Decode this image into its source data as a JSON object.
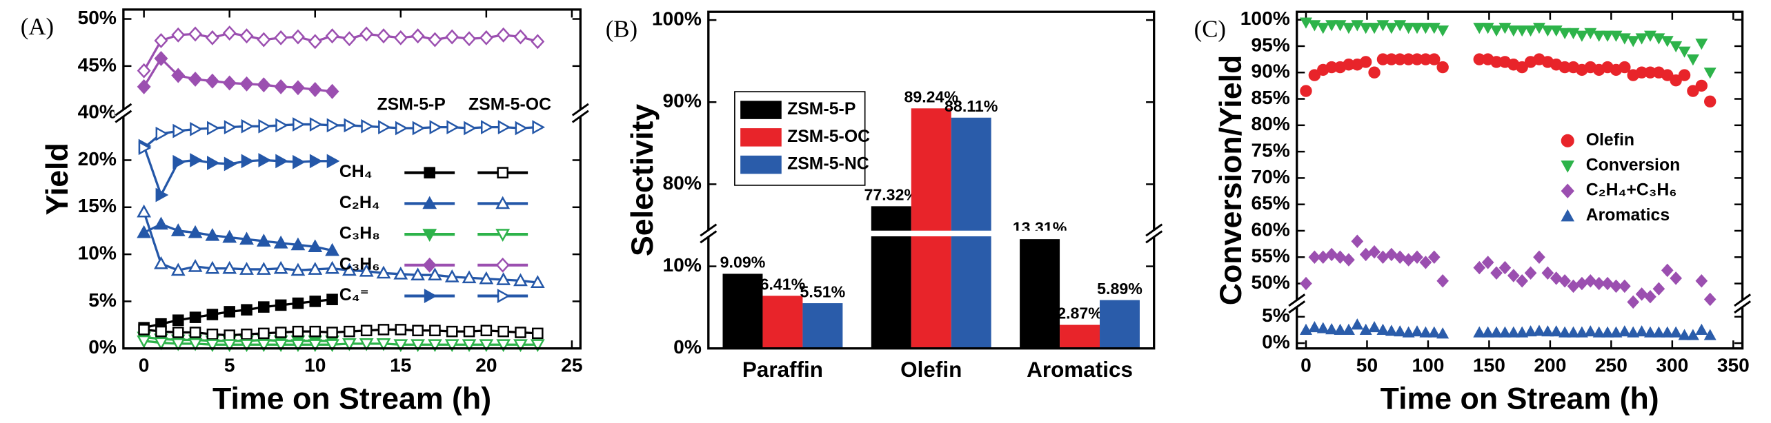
{
  "chart_data": [
    {
      "type": "line",
      "label": "(A)",
      "ylabel": "Yield",
      "xlabel": "Time on Stream (h)",
      "xlim": [
        -1.2,
        25.5
      ],
      "ylim": [
        0,
        51
      ],
      "ybreak": [
        25,
        40
      ],
      "xticks": [
        0,
        5,
        10,
        15,
        20,
        25
      ],
      "yticks": [
        {
          "value": 0,
          "label": "0%"
        },
        {
          "value": 5,
          "label": "5%"
        },
        {
          "value": 10,
          "label": "10%"
        },
        {
          "value": 15,
          "label": "15%"
        },
        {
          "value": 20,
          "label": "20%"
        },
        {
          "value": 40,
          "label": "40%"
        },
        {
          "value": 45,
          "label": "45%"
        },
        {
          "value": 50,
          "label": "50%"
        }
      ],
      "species": [
        {
          "name": "CH₄",
          "color": "#000000",
          "marker": "square"
        },
        {
          "name": "C₂H₄",
          "color": "#2457a8",
          "marker": "tri-up"
        },
        {
          "name": "C₃H₈",
          "color": "#2db34a",
          "marker": "tri-down"
        },
        {
          "name": "C₃H₆",
          "color": "#9b4fb0",
          "marker": "diamond"
        },
        {
          "name": "C₄⁼",
          "color": "#2457a8",
          "marker": "tri-right"
        }
      ],
      "groups": [
        {
          "name": "ZSM-5-P",
          "filled": true,
          "x": [
            0,
            1,
            2,
            3,
            4,
            5,
            6,
            7,
            8,
            9,
            10,
            11
          ],
          "values": [
            [
              2.2,
              2.6,
              3.0,
              3.3,
              3.6,
              3.9,
              4.1,
              4.4,
              4.6,
              4.8,
              5.0,
              5.2
            ],
            [
              12.3,
              13.2,
              12.5,
              12.3,
              12.0,
              11.8,
              11.6,
              11.4,
              11.2,
              11.0,
              10.8,
              10.4
            ],
            [
              1.2,
              1.0,
              0.9,
              0.9,
              0.8,
              0.8,
              0.8,
              0.9,
              0.8,
              0.8,
              0.8,
              0.8
            ],
            [
              42.8,
              45.8,
              44.0,
              43.6,
              43.4,
              43.2,
              43.1,
              43.0,
              42.8,
              42.7,
              42.5,
              42.3
            ],
            [
              21.5,
              16.3,
              19.8,
              20.0,
              19.7,
              19.6,
              19.9,
              20.0,
              19.9,
              19.8,
              19.9,
              19.9
            ]
          ]
        },
        {
          "name": "ZSM-5-OC",
          "filled": false,
          "x": [
            0,
            1,
            2,
            3,
            4,
            5,
            6,
            7,
            8,
            9,
            10,
            11,
            12,
            13,
            14,
            15,
            16,
            17,
            18,
            19,
            20,
            21,
            22,
            23
          ],
          "values": [
            [
              2.0,
              1.8,
              1.7,
              1.7,
              1.5,
              1.4,
              1.5,
              1.6,
              1.7,
              1.8,
              1.8,
              1.7,
              1.8,
              1.9,
              2.0,
              2.0,
              1.9,
              1.9,
              1.8,
              1.8,
              1.9,
              1.8,
              1.7,
              1.6
            ],
            [
              14.5,
              9.0,
              8.3,
              8.7,
              8.5,
              8.5,
              8.4,
              8.4,
              8.5,
              8.3,
              8.4,
              8.5,
              8.3,
              8.2,
              8.0,
              7.9,
              7.8,
              7.8,
              7.6,
              7.5,
              7.4,
              7.3,
              7.2,
              7.0
            ],
            [
              0.8,
              0.6,
              0.5,
              0.5,
              0.4,
              0.4,
              0.4,
              0.4,
              0.4,
              0.4,
              0.4,
              0.4,
              0.5,
              0.5,
              0.5,
              0.4,
              0.4,
              0.4,
              0.4,
              0.4,
              0.4,
              0.4,
              0.4,
              0.4
            ],
            [
              44.5,
              47.7,
              48.3,
              48.4,
              48.0,
              48.5,
              48.2,
              47.8,
              48.0,
              48.1,
              47.6,
              48.2,
              47.9,
              48.4,
              48.2,
              48.0,
              48.2,
              47.8,
              48.1,
              47.9,
              48.0,
              48.3,
              48.1,
              47.6
            ],
            [
              21.3,
              22.8,
              23.1,
              23.3,
              23.4,
              23.5,
              23.6,
              23.6,
              23.7,
              23.8,
              23.8,
              23.7,
              23.7,
              23.6,
              23.5,
              23.4,
              23.4,
              23.5,
              23.5,
              23.4,
              23.5,
              23.5,
              23.4,
              23.5
            ]
          ]
        }
      ]
    },
    {
      "type": "bar",
      "label": "(B)",
      "ylabel": "Selectivity",
      "categories": [
        "Paraffin",
        "Olefin",
        "Aromatics"
      ],
      "ylim": [
        0,
        101
      ],
      "ybreak": [
        14,
        74
      ],
      "yticks": [
        {
          "value": 0,
          "label": "0%"
        },
        {
          "value": 10,
          "label": "10%"
        },
        {
          "value": 80,
          "label": "80%"
        },
        {
          "value": 90,
          "label": "90%"
        },
        {
          "value": 100,
          "label": "100%"
        }
      ],
      "series": [
        {
          "name": "ZSM-5-P",
          "color": "#000000",
          "values": [
            9.09,
            77.32,
            13.31
          ],
          "value_labels": [
            "9.09%",
            "77.32%",
            "13.31%"
          ]
        },
        {
          "name": "ZSM-5-OC",
          "color": "#e8242a",
          "values": [
            6.41,
            89.24,
            2.87
          ],
          "value_labels": [
            "6.41%",
            "89.24%",
            "2.87%"
          ]
        },
        {
          "name": "ZSM-5-NC",
          "color": "#2a5caa",
          "values": [
            5.51,
            88.11,
            5.89
          ],
          "value_labels": [
            "5.51%",
            "88.11%",
            "5.89%"
          ]
        }
      ]
    },
    {
      "type": "scatter",
      "label": "(C)",
      "ylabel": "Conversion/Yield",
      "xlabel": "Time on Stream (h)",
      "xlim": [
        -7.5,
        357.5
      ],
      "ylim": [
        -1,
        101.5
      ],
      "ybreak": [
        7.5,
        46.2
      ],
      "xticks": [
        0,
        50,
        100,
        150,
        200,
        250,
        300,
        350
      ],
      "yticks": [
        {
          "value": 0,
          "label": "0%"
        },
        {
          "value": 5,
          "label": "5%"
        },
        {
          "value": 50,
          "label": "50%"
        },
        {
          "value": 55,
          "label": "55%"
        },
        {
          "value": 60,
          "label": "60%"
        },
        {
          "value": 65,
          "label": "65%"
        },
        {
          "value": 70,
          "label": "70%"
        },
        {
          "value": 75,
          "label": "75%"
        },
        {
          "value": 80,
          "label": "80%"
        },
        {
          "value": 85,
          "label": "85%"
        },
        {
          "value": 90,
          "label": "90%"
        },
        {
          "value": 95,
          "label": "95%"
        },
        {
          "value": 100,
          "label": "100%"
        }
      ],
      "x": [
        0,
        7,
        14,
        21,
        28,
        35,
        42,
        49,
        56,
        63,
        70,
        77,
        84,
        91,
        98,
        105,
        112,
        142,
        149,
        156,
        163,
        170,
        177,
        184,
        191,
        198,
        205,
        212,
        219,
        226,
        233,
        240,
        247,
        254,
        261,
        268,
        275,
        282,
        289,
        296,
        303,
        310,
        317,
        324,
        331
      ],
      "series": [
        {
          "name": "Olefin",
          "color": "#e8242a",
          "marker": "circle",
          "values": [
            86.5,
            89.5,
            90.5,
            91,
            91,
            91.5,
            91.5,
            92,
            90,
            92.5,
            92.5,
            92.5,
            92.5,
            92.5,
            92.5,
            92.5,
            91,
            92.5,
            92.5,
            92,
            92,
            91.5,
            91,
            92,
            92.5,
            92,
            91.5,
            91,
            91,
            90.5,
            91,
            90.5,
            91,
            90.5,
            91,
            89.5,
            90,
            90,
            90,
            89.5,
            88.5,
            89.5,
            86.5,
            87.5,
            84.5
          ]
        },
        {
          "name": "Conversion",
          "color": "#2db34a",
          "marker": "tri-down",
          "values": [
            99.5,
            99,
            98.5,
            99,
            99,
            98.5,
            99,
            98.5,
            98.5,
            99,
            98.5,
            99,
            98.5,
            98.5,
            98.5,
            98.5,
            98,
            98.5,
            98.5,
            98,
            98.5,
            98,
            98,
            98,
            98.5,
            98,
            98,
            97.5,
            97.5,
            97,
            97.5,
            97,
            97,
            97,
            96.5,
            96,
            96.5,
            97,
            96.5,
            96,
            95,
            94,
            92.5,
            95.5,
            90
          ]
        },
        {
          "name": "C₂H₄+C₃H₆",
          "color": "#9b4fb0",
          "marker": "diamond",
          "values": [
            50,
            55,
            55,
            55.5,
            55,
            54.5,
            58,
            55.5,
            56,
            55,
            55.5,
            55,
            54.5,
            55,
            54,
            55,
            50.5,
            53,
            54,
            52,
            53,
            51.5,
            50.5,
            52,
            55,
            52,
            51,
            50.5,
            49.5,
            50,
            50.5,
            50,
            50,
            49.5,
            49.5,
            46.5,
            48,
            47.5,
            49,
            52.5,
            51,
            null,
            null,
            50.5,
            47
          ]
        },
        {
          "name": "Aromatics",
          "color": "#2a5caa",
          "marker": "tri-up",
          "values": [
            2.5,
            3,
            2.8,
            2.6,
            2.5,
            2.5,
            3.5,
            2.5,
            3,
            2.5,
            2.3,
            2.2,
            2,
            2.2,
            2,
            2,
            1.8,
            2,
            2,
            2,
            2,
            2,
            2,
            2.2,
            2.3,
            2.2,
            2.2,
            2,
            2,
            2,
            2.2,
            2,
            2,
            2,
            2.2,
            2,
            2.2,
            2,
            2,
            2,
            2,
            1.5,
            1.5,
            2.5,
            1.5
          ]
        }
      ]
    }
  ]
}
